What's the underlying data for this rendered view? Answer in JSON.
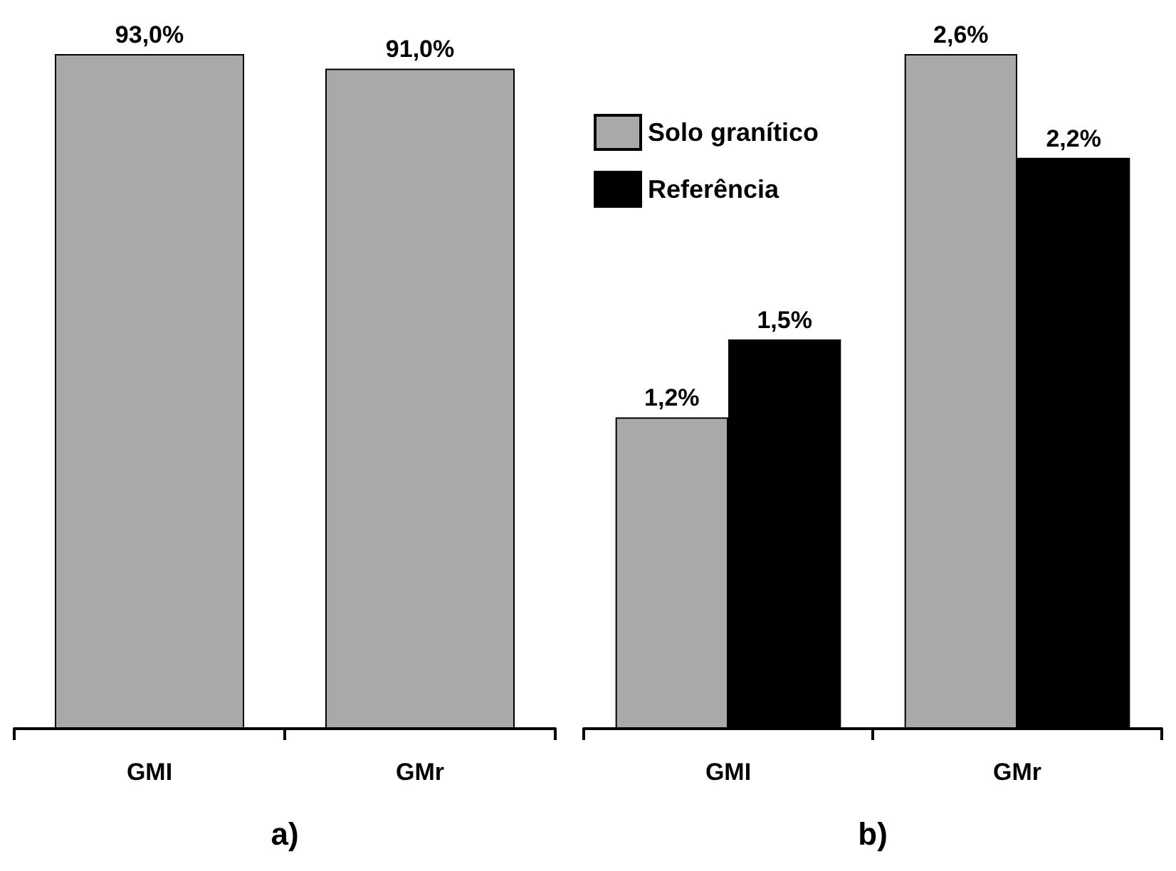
{
  "chart_data": [
    {
      "type": "bar",
      "title": "a)",
      "categories": [
        "GMI",
        "GMr"
      ],
      "tick_labels": "x",
      "legend": false,
      "series": [
        {
          "color": "#a9a9a9",
          "values": [
            93.0,
            91.0
          ],
          "value_labels": [
            "93,0%",
            "91,0%"
          ]
        }
      ]
    },
    {
      "type": "bar",
      "title": "b)",
      "categories": [
        "GMI",
        "GMr"
      ],
      "tick_labels": "x",
      "legend": "top left",
      "series": [
        {
          "name": "Solo granítico",
          "color": "#a9a9a9",
          "values": [
            1.2,
            2.6
          ],
          "value_labels": [
            "1,2%",
            "2,6%"
          ]
        },
        {
          "name": "Referência",
          "color": "#000000",
          "values": [
            1.5,
            2.2
          ],
          "value_labels": [
            "1,5%",
            "2,2%"
          ]
        }
      ]
    }
  ]
}
